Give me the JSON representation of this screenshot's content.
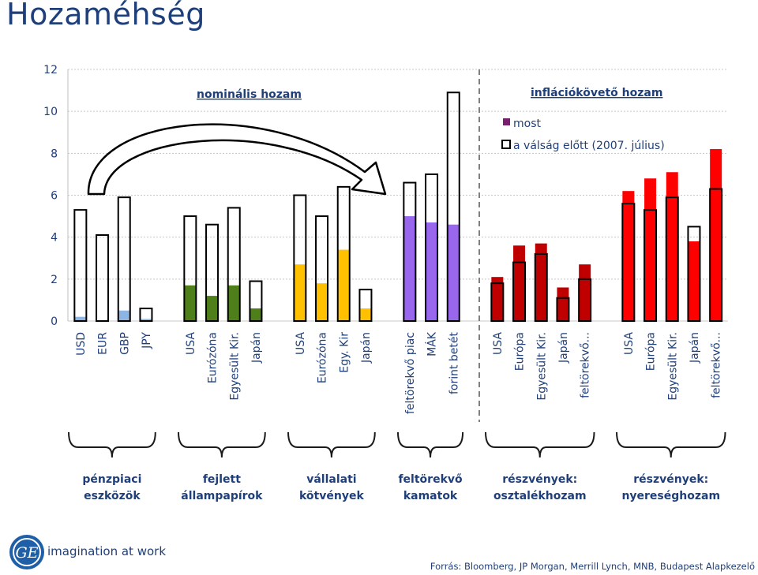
{
  "title": "Hozaméhség",
  "chart_data": {
    "type": "bar",
    "ylim": [
      0,
      12
    ],
    "yticks": [
      0,
      2,
      4,
      6,
      8,
      10,
      12
    ],
    "series": [
      {
        "name": "most",
        "key": "now"
      },
      {
        "name": "a válság előtt (2007. július)",
        "key": "before"
      }
    ],
    "annotations": {
      "nominal": "nominális hozam",
      "inflation": "inflációkövető hozam"
    },
    "groups": [
      {
        "label": "pénzpiaci\neszközök",
        "color": "#8eb4e3",
        "bars": [
          {
            "label": "USD",
            "now": 0.2,
            "before": 5.3
          },
          {
            "label": "EUR",
            "now": 0.0,
            "before": 4.1
          },
          {
            "label": "GBP",
            "now": 0.5,
            "before": 5.9
          },
          {
            "label": "JPY",
            "now": 0.1,
            "before": 0.6
          }
        ]
      },
      {
        "label": "fejlett\nállampapírok",
        "color": "#4f7f1a",
        "bars": [
          {
            "label": "USA",
            "now": 1.7,
            "before": 5.0
          },
          {
            "label": "Eurózóna",
            "now": 1.2,
            "before": 4.6
          },
          {
            "label": "Egyesült Kir.",
            "now": 1.7,
            "before": 5.4
          },
          {
            "label": "Japán",
            "now": 0.6,
            "before": 1.9
          }
        ]
      },
      {
        "label": "vállalati\nkötvények",
        "color": "#ffc000",
        "bars": [
          {
            "label": "USA",
            "now": 2.7,
            "before": 6.0
          },
          {
            "label": "Eurózóna",
            "now": 1.8,
            "before": 5.0
          },
          {
            "label": "Egy. Kir",
            "now": 3.4,
            "before": 6.4
          },
          {
            "label": "Japán",
            "now": 0.6,
            "before": 1.5
          }
        ]
      },
      {
        "label": "feltörekvő\nkamatok",
        "color": "#9966ee",
        "bars": [
          {
            "label": "feltörekvő piac",
            "now": 5.0,
            "before": 6.6
          },
          {
            "label": "MÁK",
            "now": 4.7,
            "before": 7.0
          },
          {
            "label": "forint betét",
            "now": 4.6,
            "before": 10.9
          }
        ]
      },
      {
        "label": "részvények:\nosztalékhozam",
        "color": "#c00000",
        "bars": [
          {
            "label": "USA",
            "now": 2.1,
            "before": 1.8
          },
          {
            "label": "Európa",
            "now": 3.6,
            "before": 2.8
          },
          {
            "label": "Egyesült Kir.",
            "now": 3.7,
            "before": 3.2
          },
          {
            "label": "Japán",
            "now": 1.6,
            "before": 1.1
          },
          {
            "label": "feltörekvő...",
            "now": 2.7,
            "before": 2.0
          }
        ]
      },
      {
        "label": "részvények:\nnyereséghozam",
        "color": "#ff0000",
        "bars": [
          {
            "label": "USA",
            "now": 6.2,
            "before": 5.6
          },
          {
            "label": "Európa",
            "now": 6.8,
            "before": 5.3
          },
          {
            "label": "Egyesült Kir.",
            "now": 7.1,
            "before": 5.9
          },
          {
            "label": "Japán",
            "now": 3.8,
            "before": 4.5
          },
          {
            "label": "feltörekvő...",
            "now": 8.2,
            "before": 6.3
          }
        ]
      }
    ]
  },
  "legend_colors": {
    "now": "#7a1f6e",
    "before": "#ffffff"
  },
  "footer": {
    "logo_text": "GE",
    "tagline": "imagination at work",
    "source": "Forrás: Bloomberg, JP Morgan, Merrill Lynch, MNB, Budapest Alapkezelő"
  }
}
